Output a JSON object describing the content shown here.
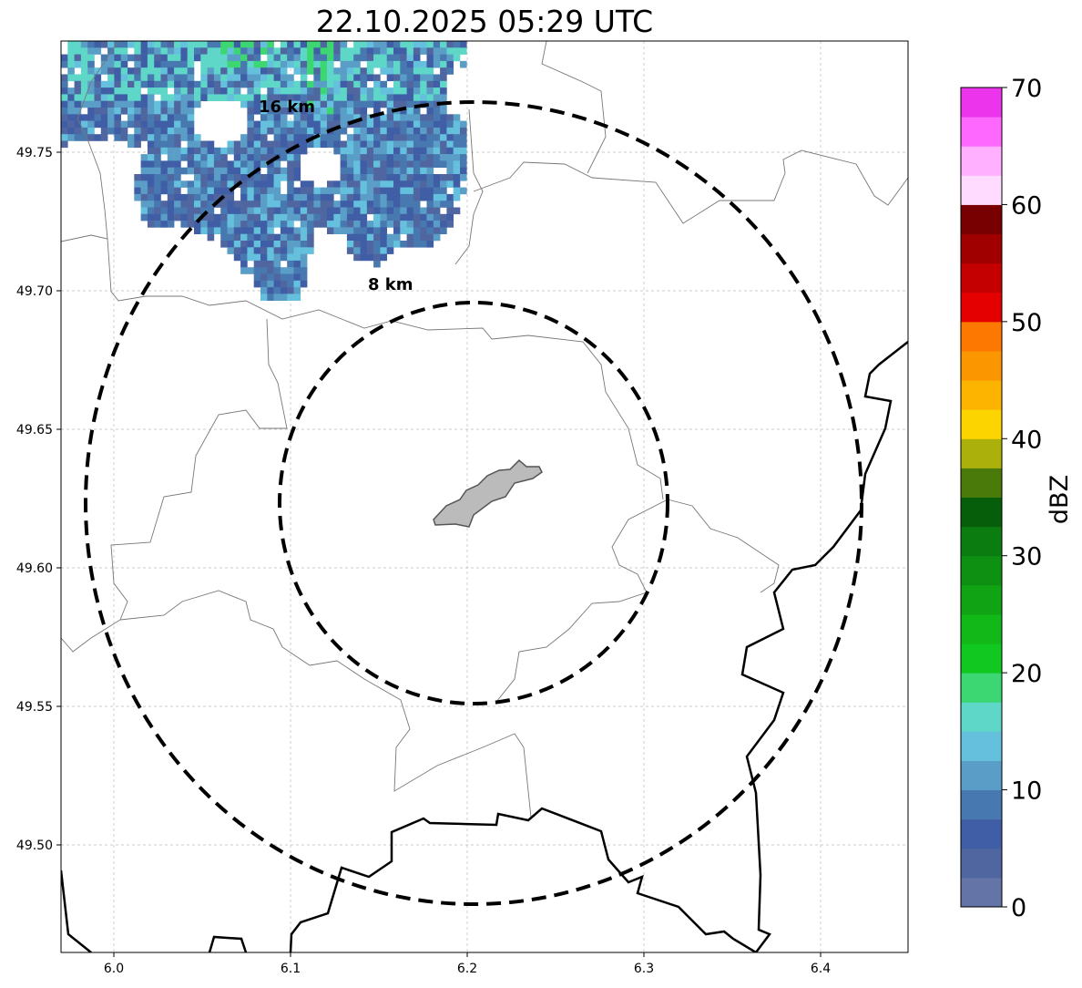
{
  "title": "22.10.2025 05:29 UTC",
  "map": {
    "lon_range": [
      5.97,
      6.45
    ],
    "lat_range": [
      49.46,
      49.79
    ],
    "x_ticks": [
      "6.0",
      "6.1",
      "6.2",
      "6.3",
      "6.4"
    ],
    "y_ticks": [
      "49.75",
      "49.70",
      "49.65",
      "49.60",
      "49.55",
      "49.50"
    ],
    "rings": [
      {
        "label": "16 km",
        "radius_km": 16
      },
      {
        "label": "8 km",
        "radius_km": 8
      }
    ]
  },
  "colorbar": {
    "label": "dBZ",
    "ticks": [
      "0",
      "10",
      "20",
      "30",
      "40",
      "50",
      "60",
      "70"
    ],
    "range": [
      0,
      70
    ],
    "colors": [
      "#6574a6",
      "#5066a0",
      "#405ea5",
      "#4878b0",
      "#5a9ec8",
      "#64c0dc",
      "#5ed6c8",
      "#3cd672",
      "#10c820",
      "#12b818",
      "#10a414",
      "#0e9012",
      "#0a7c10",
      "#075e0a",
      "#4a7a0a",
      "#acb00a",
      "#fcd500",
      "#fcb400",
      "#fc9600",
      "#fc7800",
      "#e40000",
      "#c40000",
      "#a00000",
      "#780000",
      "#ffdcff",
      "#ffb0ff",
      "#ff68ff",
      "#ec34ec"
    ]
  }
}
